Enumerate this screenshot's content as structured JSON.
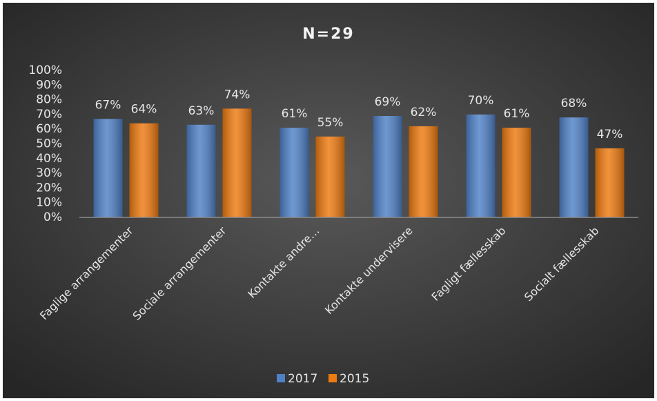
{
  "chart_data": {
    "type": "bar",
    "title": "N=29",
    "categories": [
      "Faglige arrangementer",
      "Sociale arrangementer",
      "Kontakte andre…",
      "Kontakte undervisere",
      "Fagligt fællesskab",
      "Socialt fællesskab"
    ],
    "series": [
      {
        "name": "2017",
        "color": "#4f81c7",
        "values": [
          67,
          63,
          61,
          69,
          70,
          68
        ],
        "value_labels": [
          "67%",
          "63%",
          "61%",
          "69%",
          "70%",
          "68%"
        ]
      },
      {
        "name": "2015",
        "color": "#ee7a10",
        "values": [
          64,
          74,
          55,
          62,
          61,
          47
        ],
        "value_labels": [
          "64%",
          "74%",
          "55%",
          "62%",
          "61%",
          "47%"
        ]
      }
    ],
    "ylim": [
      0,
      100
    ],
    "yticks": [
      {
        "value": 0,
        "label": "0%"
      },
      {
        "value": 10,
        "label": "10%"
      },
      {
        "value": 20,
        "label": "20%"
      },
      {
        "value": 30,
        "label": "30%"
      },
      {
        "value": 40,
        "label": "40%"
      },
      {
        "value": 50,
        "label": "50%"
      },
      {
        "value": 60,
        "label": "60%"
      },
      {
        "value": 70,
        "label": "70%"
      },
      {
        "value": 80,
        "label": "80%"
      },
      {
        "value": 90,
        "label": "90%"
      },
      {
        "value": 100,
        "label": "100%"
      }
    ],
    "grid": false,
    "legend": "bottom"
  }
}
